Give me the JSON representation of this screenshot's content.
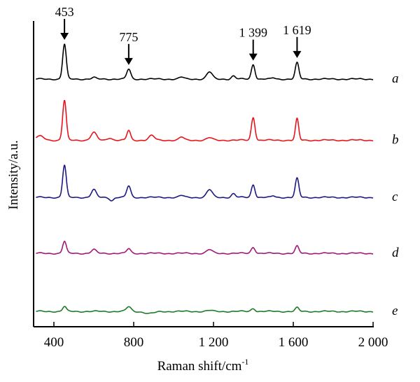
{
  "chart_data": {
    "type": "line",
    "title": "",
    "xlabel": "Raman shift/cm",
    "xlabel_sup": "-1",
    "ylabel": "Intensity/a.u.",
    "xlim": [
      300,
      2000
    ],
    "ylim": [
      0,
      100
    ],
    "xticks": [
      400,
      800,
      1200,
      1600,
      2000
    ],
    "xtick_labels": [
      "400",
      "800",
      "1 200",
      "1 600",
      "2 000"
    ],
    "annotations": [
      {
        "x": 453,
        "text": "453"
      },
      {
        "x": 775,
        "text": "775"
      },
      {
        "x": 1399,
        "text": "1 399"
      },
      {
        "x": 1619,
        "text": "1 619"
      }
    ],
    "series": [
      {
        "name": "a",
        "color": "#000000",
        "offset": 81,
        "peaks": [
          [
            453,
            11.4,
            9
          ],
          [
            600,
            0.5,
            10
          ],
          [
            775,
            3.2,
            10
          ],
          [
            1040,
            0.6,
            12
          ],
          [
            1180,
            2.3,
            14
          ],
          [
            1300,
            1.0,
            10
          ],
          [
            1399,
            4.8,
            9
          ],
          [
            1500,
            0.4,
            8
          ],
          [
            1619,
            5.3,
            9
          ]
        ]
      },
      {
        "name": "b",
        "color": "#e8141c",
        "offset": 61,
        "peaks": [
          [
            330,
            1.3,
            20
          ],
          [
            453,
            13,
            9
          ],
          [
            600,
            2.5,
            14
          ],
          [
            680,
            0.8,
            12
          ],
          [
            775,
            3.2,
            9
          ],
          [
            890,
            1.5,
            14
          ],
          [
            1040,
            1.0,
            12
          ],
          [
            1180,
            0.8,
            14
          ],
          [
            1399,
            7.5,
            9
          ],
          [
            1619,
            7.0,
            8
          ]
        ]
      },
      {
        "name": "c",
        "color": "#1c1a80",
        "offset": 42.3,
        "peaks": [
          [
            453,
            10.5,
            9
          ],
          [
            600,
            2.5,
            12
          ],
          [
            690,
            -1.0,
            10
          ],
          [
            775,
            3.7,
            10
          ],
          [
            1040,
            0.6,
            12
          ],
          [
            1180,
            2.5,
            14
          ],
          [
            1300,
            1.2,
            10
          ],
          [
            1399,
            4.2,
            9
          ],
          [
            1500,
            0.5,
            8
          ],
          [
            1619,
            6.2,
            9
          ]
        ]
      },
      {
        "name": "d",
        "color": "#a0197a",
        "offset": 24,
        "peaks": [
          [
            453,
            3.9,
            9
          ],
          [
            600,
            1.2,
            12
          ],
          [
            775,
            1.5,
            10
          ],
          [
            1180,
            1.2,
            14
          ],
          [
            1399,
            2.0,
            10
          ],
          [
            1619,
            2.3,
            9
          ]
        ]
      },
      {
        "name": "e",
        "color": "#1e7a2a",
        "offset": 5,
        "peaks": [
          [
            453,
            1.6,
            9
          ],
          [
            775,
            1.5,
            12
          ],
          [
            880,
            -0.7,
            25
          ],
          [
            1180,
            0.3,
            14
          ],
          [
            1399,
            1.0,
            10
          ],
          [
            1619,
            1.2,
            9
          ]
        ]
      }
    ]
  }
}
